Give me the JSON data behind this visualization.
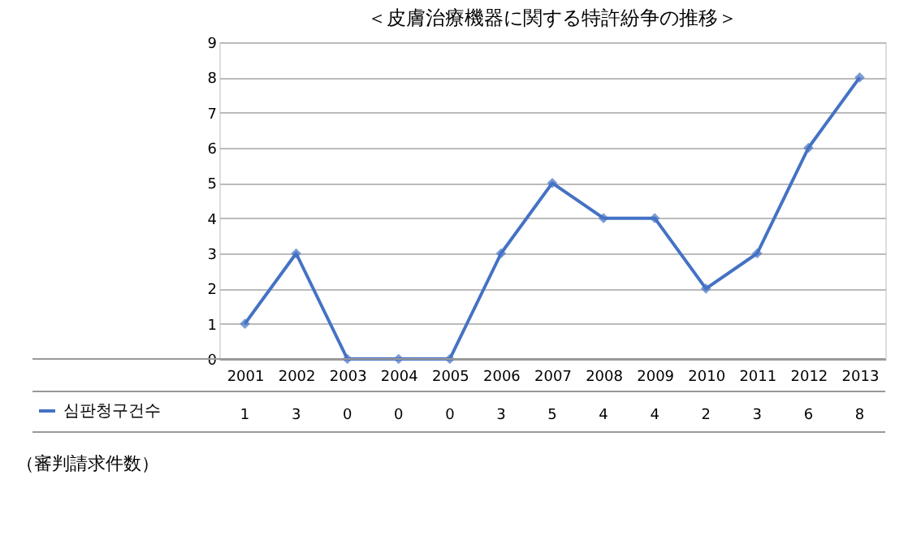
{
  "chart_data": {
    "type": "line",
    "title": "＜皮膚治療機器に関する特許紛争の推移＞",
    "categories": [
      "2001",
      "2002",
      "2003",
      "2004",
      "2005",
      "2006",
      "2007",
      "2008",
      "2009",
      "2010",
      "2011",
      "2012",
      "2013"
    ],
    "series": [
      {
        "name": "심판청구건수",
        "color": "#4472c4",
        "values": [
          1,
          3,
          0,
          0,
          0,
          3,
          5,
          4,
          4,
          2,
          3,
          6,
          8
        ]
      }
    ],
    "ylim": [
      0,
      9
    ],
    "yticks": [
      0,
      1,
      2,
      3,
      4,
      5,
      6,
      7,
      8,
      9
    ],
    "grid": "y",
    "marker": "diamond",
    "line_style": "solid",
    "legend": "bottom left",
    "data_labels": true,
    "annotations": [
      "（審判請求件数）"
    ]
  }
}
